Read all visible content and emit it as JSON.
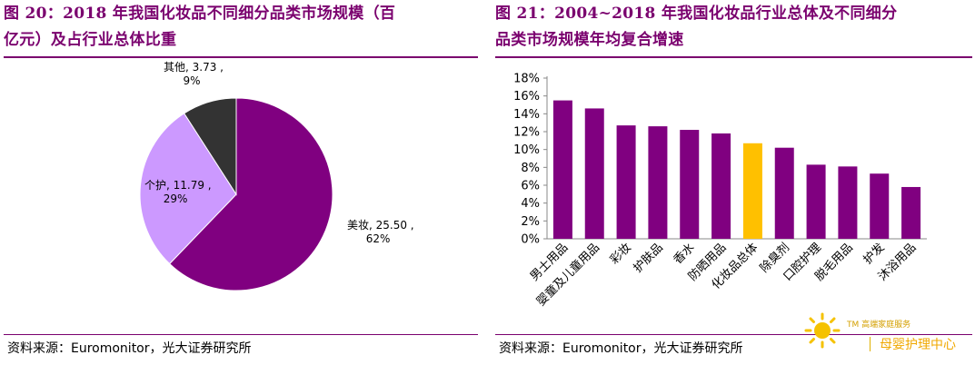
{
  "left": {
    "title": "图 20：2018 年我国化妆品不同细分品类市场规模（百亿元）及占行业总体比重",
    "title_line1": "图 20：2018 年我国化妆品不同细分品类市场规模（百",
    "title_line2": "亿元）及占行业总体比重",
    "source": "资料来源：Euromonitor，光大证券研究所"
  },
  "right": {
    "title": "图 21：2004~2018 年我国化妆品行业总体及不同细分品类市场规模年均复合增速",
    "title_line1": "图 21：2004~2018 年我国化妆品行业总体及不同细分",
    "title_line2": "品类市场规模年均复合增速",
    "source": "资料来源：Euromonitor，光大证券研究所"
  },
  "watermark": {
    "tm_text": "TM 高端家庭服务",
    "brand_text": "母婴护理中心"
  },
  "chart_data": [
    {
      "type": "pie",
      "slices": [
        {
          "name": "美妆",
          "value": 25.5,
          "pct": "62%",
          "label_line1": "美妆, 25.50 ,",
          "label_line2": "62%",
          "color": "#800080"
        },
        {
          "name": "个护",
          "value": 11.79,
          "pct": "29%",
          "label_line1": "个护, 11.79 ,",
          "label_line2": "29%",
          "color": "#cc99ff"
        },
        {
          "name": "其他",
          "value": 3.73,
          "pct": "9%",
          "label_line1": "其他, 3.73 ,",
          "label_line2": "9%",
          "color": "#333333"
        }
      ]
    },
    {
      "type": "bar",
      "categories": [
        "男士用品",
        "婴童及儿童用品",
        "彩妆",
        "护肤品",
        "香水",
        "防晒用品",
        "化妆品总体",
        "除臭剂",
        "口腔护理",
        "脱毛用品",
        "护发",
        "沐浴用品"
      ],
      "values": [
        15.5,
        14.6,
        12.7,
        12.6,
        12.2,
        11.8,
        10.7,
        10.2,
        8.3,
        8.1,
        7.3,
        5.8
      ],
      "colors": [
        "#800080",
        "#800080",
        "#800080",
        "#800080",
        "#800080",
        "#800080",
        "#ffc000",
        "#800080",
        "#800080",
        "#800080",
        "#800080",
        "#800080"
      ],
      "yticks": [
        "0%",
        "2%",
        "4%",
        "6%",
        "8%",
        "10%",
        "12%",
        "14%",
        "16%",
        "18%"
      ],
      "ylim": [
        0,
        18
      ]
    }
  ]
}
